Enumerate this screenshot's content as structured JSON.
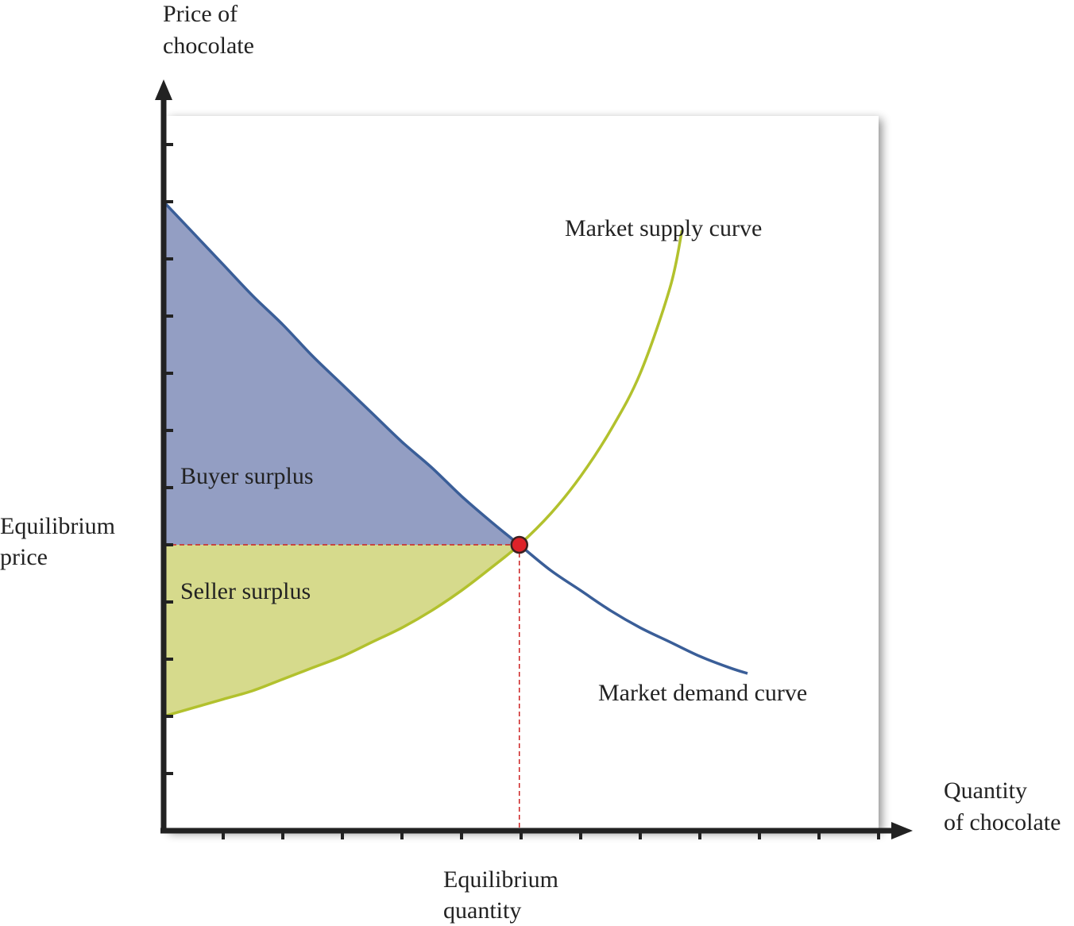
{
  "chart_data": {
    "type": "line",
    "title": "",
    "ylabel_lines": [
      "Price of",
      "chocolate"
    ],
    "xlabel_lines": [
      "Quantity",
      "of chocolate"
    ],
    "xlim": [
      0,
      12
    ],
    "ylim": [
      0,
      12.5
    ],
    "x_ticks": [
      1,
      2,
      3,
      4,
      5,
      6,
      7,
      8,
      9,
      10,
      11,
      12
    ],
    "y_ticks": [
      1,
      2,
      3,
      4,
      5,
      6,
      7,
      8,
      9,
      10,
      11,
      12
    ],
    "grid": false,
    "equilibrium": {
      "x": 5.97,
      "y": 5.0,
      "price_label_lines": [
        "Equilibrium",
        "price"
      ],
      "quantity_label_lines": [
        "Equilibrium",
        "quantity"
      ]
    },
    "series": [
      {
        "name": "Market demand curve",
        "color": "#3a5e98",
        "x": [
          0,
          0.5,
          1,
          1.5,
          2,
          2.5,
          3,
          3.5,
          4,
          4.5,
          5,
          5.5,
          5.97,
          6.5,
          7,
          7.5,
          8,
          8.5,
          9,
          9.5,
          9.8
        ],
        "y": [
          11.0,
          10.45,
          9.9,
          9.35,
          8.85,
          8.3,
          7.8,
          7.3,
          6.8,
          6.35,
          5.85,
          5.4,
          5.0,
          4.55,
          4.2,
          3.85,
          3.55,
          3.3,
          3.05,
          2.85,
          2.75
        ]
      },
      {
        "name": "Market supply curve",
        "color": "#b2c12d",
        "x": [
          0,
          0.5,
          1,
          1.5,
          2,
          2.5,
          3,
          3.5,
          4,
          4.5,
          5,
          5.5,
          5.97,
          6.5,
          7,
          7.5,
          8,
          8.5,
          8.7
        ],
        "y": [
          2.0,
          2.15,
          2.3,
          2.45,
          2.65,
          2.85,
          3.05,
          3.3,
          3.55,
          3.85,
          4.2,
          4.6,
          5.0,
          5.55,
          6.2,
          7.0,
          8.0,
          9.5,
          10.5
        ]
      }
    ],
    "shaded_areas": [
      {
        "name": "Buyer surplus",
        "color": "#939ec3",
        "between": "demand curve and equilibrium price"
      },
      {
        "name": "Seller surplus",
        "color": "#d6da8c",
        "between": "equilibrium price and supply curve"
      }
    ],
    "colors": {
      "axis": "#222222",
      "guide": "#cc2222",
      "point_fill": "#dd2229",
      "point_stroke": "#3a2020"
    }
  }
}
